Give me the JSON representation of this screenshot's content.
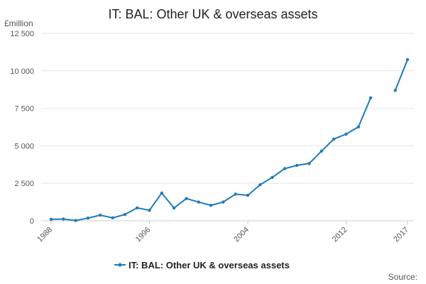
{
  "chart_data": {
    "type": "line",
    "title": "IT: BAL: Other UK & overseas assets",
    "ylabel": "£million",
    "xlabel": "",
    "ylim": [
      0,
      12500
    ],
    "yticks": [
      0,
      2500,
      5000,
      7500,
      10000,
      12500
    ],
    "ytick_labels": [
      "0",
      "2 500",
      "5 000",
      "7 500",
      "10 000",
      "12 500"
    ],
    "xlim": [
      1988,
      2017
    ],
    "xticks": [
      1988,
      1996,
      2004,
      2012,
      2017
    ],
    "xtick_labels": [
      "1988",
      "1996",
      "2004",
      "2012",
      "2017"
    ],
    "grid": true,
    "legend": "bottom",
    "colors": {
      "series": "#1f7ab8"
    },
    "series": [
      {
        "name": "IT: BAL: Other UK & overseas assets",
        "x": [
          1988,
          1989,
          1990,
          1991,
          1992,
          1993,
          1994,
          1995,
          1996,
          1997,
          1998,
          1999,
          2000,
          2001,
          2002,
          2003,
          2004,
          2005,
          2006,
          2007,
          2008,
          2009,
          2010,
          2011,
          2012,
          2013,
          2014,
          2015,
          2016,
          2017
        ],
        "values": [
          100,
          120,
          20,
          180,
          380,
          200,
          420,
          860,
          700,
          1850,
          850,
          1480,
          1250,
          1030,
          1250,
          1780,
          1700,
          2400,
          2900,
          3480,
          3700,
          3820,
          4650,
          5450,
          5780,
          6260,
          8200,
          null,
          8700,
          10750
        ]
      }
    ]
  },
  "source": "Source:"
}
